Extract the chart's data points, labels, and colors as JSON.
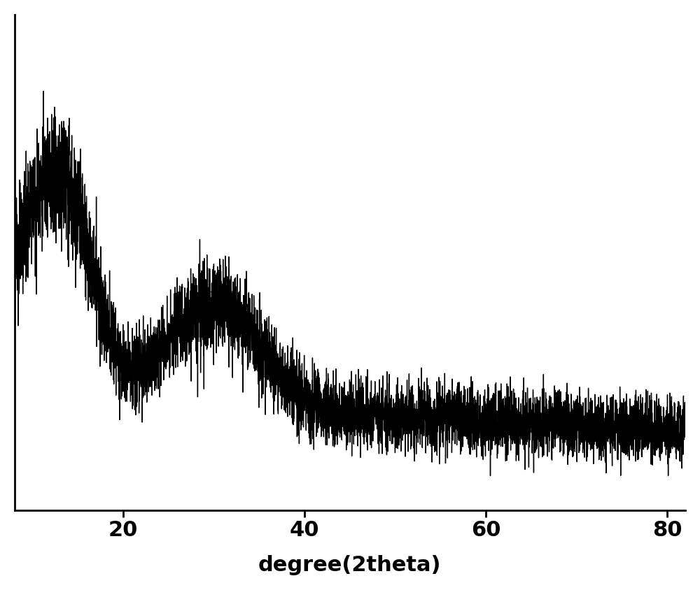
{
  "xlabel": "degree(2theta)",
  "xlim": [
    8,
    82
  ],
  "xticks": [
    20,
    40,
    60,
    80
  ],
  "line_color": "#000000",
  "background_color": "#ffffff",
  "xlabel_fontsize": 22,
  "xlabel_fontweight": "bold",
  "tick_fontsize": 22,
  "tick_fontweight": "bold",
  "linewidth": 1.0,
  "seed": 123,
  "figsize": [
    10.0,
    8.44
  ],
  "dpi": 100
}
